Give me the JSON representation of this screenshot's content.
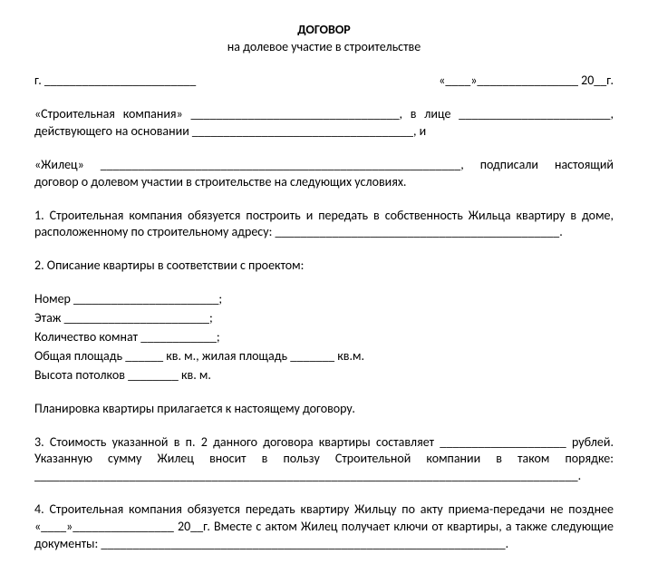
{
  "title": "ДОГОВОР",
  "subtitle": "на долевое участие в строительстве",
  "date_line_left": "г. ________________________",
  "date_line_right": "«____»________________ 20__г.",
  "party1": "«Строительная компания» _________________________________, в лице ________________________, действующего на основании ___________________________________, и",
  "party2": "«Жилец» _________________________________________________________, подписали настоящий договор о долевом участии в строительстве на следующих условиях.",
  "clause1": "1. Строительная компания обязуется построить и передать в собственность Жильца квартиру в доме, расположенному по строительному адресу: _____________________________________________.",
  "clause2_head": "2. Описание квартиры в соответствии с проектом:",
  "apt_number": "Номер _______________________;",
  "apt_floor": "Этаж _______________________;",
  "apt_rooms": "Количество комнат ____________;",
  "apt_area": "Общая площадь ______ кв. м., жилая площадь _______ кв.м.",
  "apt_height": "Высота потолков ________ кв. м.",
  "plan_note": "Планировка квартиры прилагается к настоящему договору.",
  "clause3": "3. Стоимость указанной в п. 2 данного договора квартиры составляет ____________________ рублей. Указанную сумму Жилец вносит в пользу Строительной компании в таком порядке: ______________________________________________________________________________________.",
  "clause4": "4. Строительная компания обязуется передать квартиру Жильцу по акту приема-передачи не позднее «____»________________ 20__г. Вместе с актом Жилец получает ключи от квартиры, а также следующие документы: ________________________________________________________________."
}
